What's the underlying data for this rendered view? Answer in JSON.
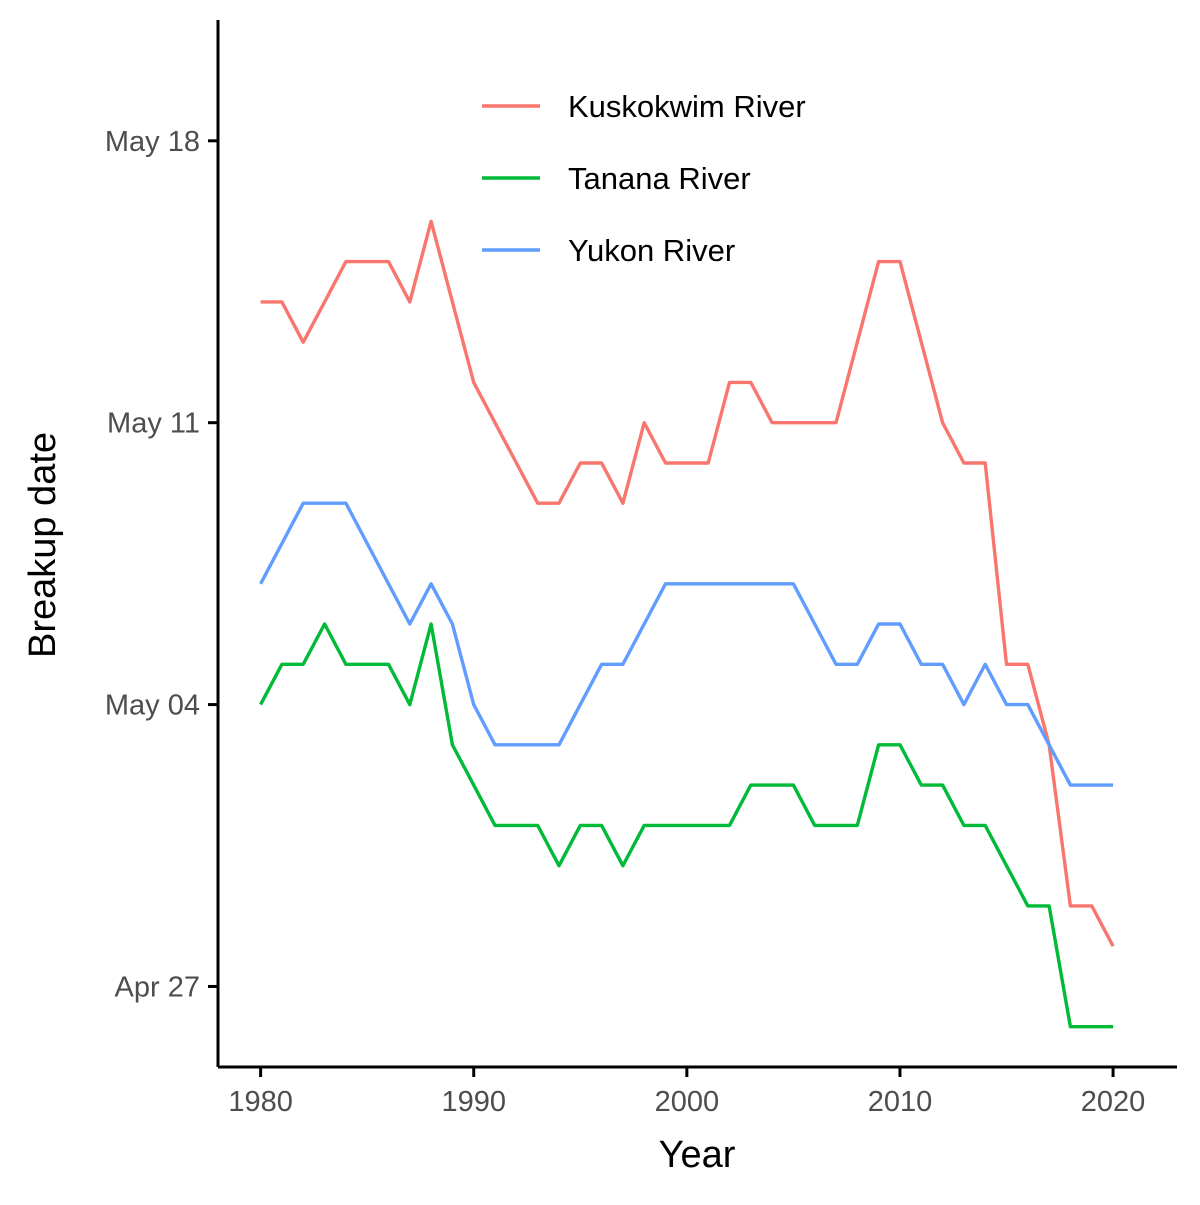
{
  "chart_data": {
    "type": "line",
    "title": "",
    "xlabel": "Year",
    "ylabel": "Breakup date",
    "x": [
      1980,
      1981,
      1982,
      1983,
      1984,
      1985,
      1986,
      1987,
      1988,
      1989,
      1990,
      1991,
      1992,
      1993,
      1994,
      1995,
      1996,
      1997,
      1998,
      1999,
      2000,
      2001,
      2002,
      2003,
      2004,
      2005,
      2006,
      2007,
      2008,
      2009,
      2010,
      2011,
      2012,
      2013,
      2014,
      2015,
      2016,
      2017,
      2018,
      2019,
      2020
    ],
    "xlim": [
      1978,
      2023
    ],
    "ylim": [
      "Apr 25",
      "May 21"
    ],
    "x_ticks": [
      {
        "value": 1980,
        "label": "1980"
      },
      {
        "value": 1990,
        "label": "1990"
      },
      {
        "value": 2000,
        "label": "2000"
      },
      {
        "value": 2010,
        "label": "2010"
      },
      {
        "value": 2020,
        "label": "2020"
      }
    ],
    "y_ticks": [
      {
        "value": "Apr 27",
        "label": "Apr 27"
      },
      {
        "value": "May 04",
        "label": "May 04"
      },
      {
        "value": "May 11",
        "label": "May 11"
      },
      {
        "value": "May 18",
        "label": "May 18"
      }
    ],
    "series": [
      {
        "name": "Kuskokwim River",
        "color": "#F8766D",
        "values": [
          "May 14",
          "May 14",
          "May 13",
          "May 14",
          "May 15",
          "May 15",
          "May 15",
          "May 14",
          "May 16",
          "May 14",
          "May 12",
          "May 11",
          "May 10",
          "May 09",
          "May 09",
          "May 10",
          "May 10",
          "May 09",
          "May 11",
          "May 10",
          "May 10",
          "May 10",
          "May 12",
          "May 12",
          "May 11",
          "May 11",
          "May 11",
          "May 11",
          "May 13",
          "May 15",
          "May 15",
          "May 13",
          "May 11",
          "May 10",
          "May 10",
          "May 05",
          "May 05",
          "May 03",
          "Apr 29",
          "Apr 29",
          "Apr 28"
        ]
      },
      {
        "name": "Tanana River",
        "color": "#00BA38",
        "values": [
          "May 04",
          "May 05",
          "May 05",
          "May 06",
          "May 05",
          "May 05",
          "May 05",
          "May 04",
          "May 06",
          "May 03",
          "May 02",
          "May 01",
          "May 01",
          "May 01",
          "Apr 30",
          "May 01",
          "May 01",
          "Apr 30",
          "May 01",
          "May 01",
          "May 01",
          "May 01",
          "May 01",
          "May 02",
          "May 02",
          "May 02",
          "May 01",
          "May 01",
          "May 01",
          "May 03",
          "May 03",
          "May 02",
          "May 02",
          "May 01",
          "May 01",
          "Apr 30",
          "Apr 29",
          "Apr 29",
          "Apr 26",
          "Apr 26",
          "Apr 26"
        ]
      },
      {
        "name": "Yukon River",
        "color": "#619CFF",
        "values": [
          "May 07",
          "May 08",
          "May 09",
          "May 09",
          "May 09",
          "May 08",
          "May 07",
          "May 06",
          "May 07",
          "May 06",
          "May 04",
          "May 03",
          "May 03",
          "May 03",
          "May 03",
          "May 04",
          "May 05",
          "May 05",
          "May 06",
          "May 07",
          "May 07",
          "May 07",
          "May 07",
          "May 07",
          "May 07",
          "May 07",
          "May 06",
          "May 05",
          "May 05",
          "May 06",
          "May 06",
          "May 05",
          "May 05",
          "May 04",
          "May 05",
          "May 04",
          "May 04",
          "May 03",
          "May 02",
          "May 02",
          "May 02"
        ]
      }
    ],
    "legend": {
      "position": "top-center"
    },
    "grid": false
  }
}
